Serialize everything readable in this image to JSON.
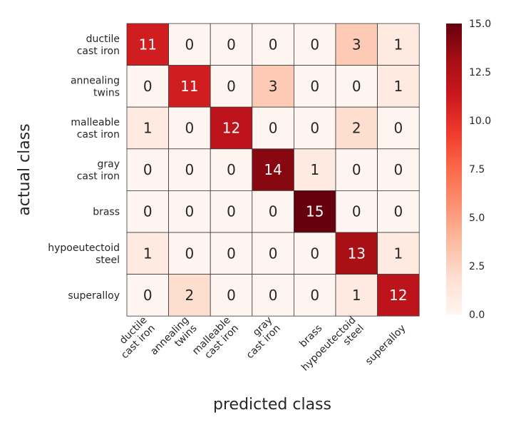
{
  "chart_data": {
    "type": "heatmap",
    "title": "",
    "xlabel": "predicted class",
    "ylabel": "actual class",
    "rows": [
      [
        "ductile",
        "cast iron"
      ],
      [
        "annealing",
        "twins"
      ],
      [
        "malleable",
        "cast iron"
      ],
      [
        "gray",
        "cast iron"
      ],
      [
        "brass"
      ],
      [
        "hypoeutectoid",
        "steel"
      ],
      [
        "superalloy"
      ]
    ],
    "columns": [
      [
        "ductile",
        "cast iron"
      ],
      [
        "annealing",
        "twins"
      ],
      [
        "malleable",
        "cast iron"
      ],
      [
        "gray",
        "cast iron"
      ],
      [
        "brass"
      ],
      [
        "hypoeutectoid",
        "steel"
      ],
      [
        "superalloy"
      ]
    ],
    "values": [
      [
        11,
        0,
        0,
        0,
        0,
        3,
        1
      ],
      [
        0,
        11,
        0,
        3,
        0,
        0,
        1
      ],
      [
        1,
        0,
        12,
        0,
        0,
        2,
        0
      ],
      [
        0,
        0,
        0,
        14,
        1,
        0,
        0
      ],
      [
        0,
        0,
        0,
        0,
        15,
        0,
        0
      ],
      [
        1,
        0,
        0,
        0,
        0,
        13,
        1
      ],
      [
        0,
        2,
        0,
        0,
        0,
        1,
        12
      ]
    ],
    "colorbar": {
      "range": [
        0,
        15
      ],
      "ticks": [
        "0.0",
        "2.5",
        "5.0",
        "7.5",
        "10.0",
        "12.5",
        "15.0"
      ],
      "colormap": "Reds"
    }
  }
}
